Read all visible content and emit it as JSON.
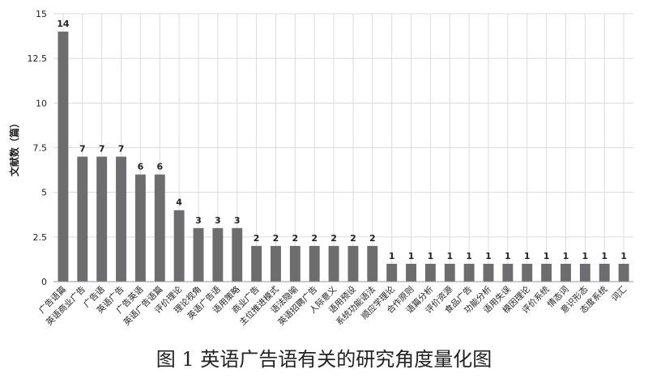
{
  "chart_data": {
    "type": "bar",
    "title": "图 1 英语广告语有关的研究角度量化图",
    "y_label": "文献数（篇）",
    "categories": [
      "广告语篇",
      "英语商业广告",
      "广告语",
      "英语广告",
      "广告英语",
      "英语广告语篇",
      "评价理论",
      "理论视角",
      "英语广告语",
      "语用策略",
      "商业广告",
      "主位推进模式",
      "语法隐喻",
      "英语招聘广告",
      "人际意义",
      "语用预设",
      "系统功能语法",
      "顺应学理论",
      "合作原则",
      "语篇分析",
      "评价资源",
      "食品广告",
      "功能分析",
      "语用失误",
      "模因理论",
      "评价系统",
      "情态词",
      "意识形态",
      "态度系统",
      "词汇"
    ],
    "values": [
      14,
      7,
      7,
      7,
      6,
      6,
      4,
      3,
      3,
      3,
      2,
      2,
      2,
      2,
      2,
      2,
      2,
      1,
      1,
      1,
      1,
      1,
      1,
      1,
      1,
      1,
      1,
      1,
      1,
      1
    ],
    "color": "#6d6d6f",
    "ylim": [
      0,
      15
    ],
    "yticks": [
      0,
      2.5,
      5,
      7.5,
      10,
      12.5,
      15
    ],
    "grid": true
  }
}
